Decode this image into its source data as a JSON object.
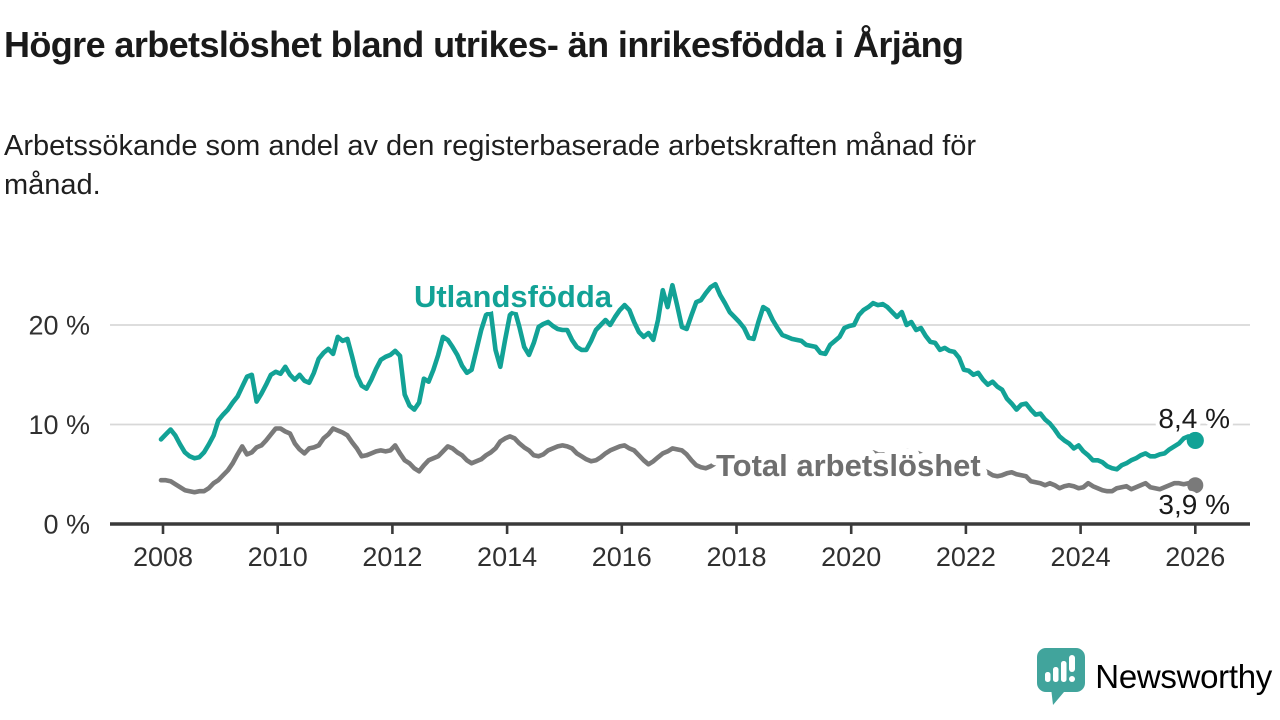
{
  "header": {
    "title": "Högre arbetslöshet bland utrikes- än inrikesfödda i Årjäng",
    "subtitle_lines": [
      "Arbetssökande som andel av den registerbaserade arbetskraften månad för",
      "månad."
    ]
  },
  "chart_data": {
    "type": "line",
    "unit": "%",
    "frequency": "monthly",
    "x_start": "2008-01",
    "x_end": "2026-01",
    "x_ticks": [
      "2008",
      "2010",
      "2012",
      "2014",
      "2016",
      "2018",
      "2020",
      "2022",
      "2024",
      "2026"
    ],
    "y_ticks": [
      {
        "value": 0,
        "label": "0 %"
      },
      {
        "value": 10,
        "label": "10 %"
      },
      {
        "value": 20,
        "label": "20 %"
      }
    ],
    "ylim": [
      0,
      25
    ],
    "grid": "horizontal-only",
    "colors": {
      "utlandsfodda": "#12a296",
      "total": "#7a7a7a",
      "gridline": "#d8d8d8",
      "axis": "#3a3a3a",
      "tick_text": "#303030",
      "gray_label_text": "#6f6f6f"
    },
    "series": [
      {
        "name": "Utlandsfödda",
        "end_label": "8,4 %",
        "end_value": 8.4,
        "values": [
          8.5,
          9.0,
          9.5,
          8.9,
          8.0,
          7.2,
          6.8,
          6.6,
          6.7,
          7.2,
          8.0,
          8.9,
          10.4,
          11.0,
          11.5,
          12.2,
          12.8,
          13.8,
          14.8,
          15.0,
          12.3,
          13.1,
          14.0,
          15.0,
          15.3,
          15.1,
          15.8,
          15.0,
          14.5,
          15.0,
          14.4,
          14.2,
          15.2,
          16.6,
          17.2,
          17.6,
          17.1,
          18.8,
          18.4,
          18.6,
          16.8,
          14.9,
          13.9,
          13.6,
          14.5,
          15.6,
          16.5,
          16.8,
          17.0,
          17.4,
          16.9,
          13.0,
          11.9,
          11.5,
          12.2,
          14.6,
          14.3,
          15.5,
          17.0,
          18.8,
          18.5,
          17.8,
          17.0,
          15.9,
          15.2,
          15.5,
          17.5,
          19.5,
          21.0,
          21.3,
          17.5,
          15.8,
          18.5,
          21.0,
          21.5,
          19.8,
          17.8,
          17.0,
          18.2,
          19.8,
          20.1,
          20.3,
          19.9,
          19.6,
          19.5,
          19.5,
          18.5,
          17.8,
          17.5,
          17.5,
          18.4,
          19.5,
          20.0,
          20.5,
          20.0,
          20.8,
          21.5,
          22.0,
          21.5,
          20.3,
          19.3,
          18.8,
          19.2,
          18.5,
          20.5,
          23.5,
          21.8,
          24.0,
          22.0,
          19.8,
          19.6,
          21.0,
          22.3,
          22.5,
          23.2,
          23.8,
          24.1,
          23.0,
          22.2,
          21.3,
          20.8,
          20.3,
          19.7,
          18.7,
          18.6,
          20.3,
          21.8,
          21.5,
          20.5,
          19.7,
          19.0,
          18.8,
          18.6,
          18.5,
          18.4,
          18.0,
          17.9,
          17.8,
          17.2,
          17.1,
          18.0,
          18.4,
          18.8,
          19.7,
          19.9,
          20.0,
          21.0,
          21.5,
          21.8,
          22.2,
          22.0,
          22.1,
          21.8,
          21.3,
          20.8,
          21.3,
          20.0,
          20.3,
          19.5,
          19.7,
          18.9,
          18.3,
          18.2,
          17.5,
          17.7,
          17.4,
          17.3,
          16.7,
          15.5,
          15.4,
          15.0,
          15.2,
          14.5,
          14.0,
          14.3,
          13.8,
          13.5,
          12.6,
          12.1,
          11.5,
          12.0,
          12.1,
          11.5,
          11.0,
          11.1,
          10.5,
          10.1,
          9.5,
          8.8,
          8.4,
          8.1,
          7.6,
          7.9,
          7.3,
          6.9,
          6.4,
          6.4,
          6.2,
          5.8,
          5.6,
          5.5,
          5.9,
          6.1,
          6.4,
          6.6,
          6.9,
          7.1,
          6.8,
          6.8,
          7.0,
          7.1,
          7.5,
          7.8,
          8.1,
          8.6,
          8.8,
          8.4
        ]
      },
      {
        "name": "Total arbetslöshet",
        "end_label": "3,9 %",
        "end_value": 3.9,
        "values": [
          4.4,
          4.4,
          4.3,
          4.0,
          3.7,
          3.4,
          3.3,
          3.2,
          3.3,
          3.3,
          3.6,
          4.1,
          4.4,
          4.9,
          5.4,
          6.1,
          7.0,
          7.8,
          7.0,
          7.2,
          7.7,
          7.9,
          8.4,
          9.0,
          9.6,
          9.6,
          9.3,
          9.1,
          8.1,
          7.5,
          7.1,
          7.6,
          7.7,
          7.9,
          8.6,
          9.0,
          9.6,
          9.4,
          9.2,
          8.9,
          8.2,
          7.6,
          6.8,
          6.9,
          7.1,
          7.3,
          7.4,
          7.3,
          7.4,
          7.9,
          7.1,
          6.4,
          6.1,
          5.6,
          5.3,
          5.9,
          6.4,
          6.6,
          6.8,
          7.3,
          7.8,
          7.6,
          7.2,
          6.9,
          6.4,
          6.1,
          6.3,
          6.5,
          6.9,
          7.2,
          7.6,
          8.3,
          8.6,
          8.8,
          8.6,
          8.1,
          7.7,
          7.4,
          6.9,
          6.8,
          7.0,
          7.4,
          7.6,
          7.8,
          7.9,
          7.8,
          7.6,
          7.1,
          6.8,
          6.5,
          6.3,
          6.4,
          6.7,
          7.1,
          7.4,
          7.6,
          7.8,
          7.9,
          7.6,
          7.4,
          6.9,
          6.4,
          6.0,
          6.3,
          6.7,
          7.1,
          7.3,
          7.6,
          7.5,
          7.4,
          7.0,
          6.4,
          5.9,
          5.7,
          5.6,
          5.8,
          6.1,
          6.5,
          6.9,
          7.3,
          7.2,
          6.9,
          6.5,
          6.1,
          5.8,
          5.5,
          5.3,
          5.4,
          5.6,
          5.8,
          6.0,
          6.3,
          6.3,
          6.2,
          6.0,
          5.7,
          5.4,
          5.2,
          5.0,
          5.1,
          5.2,
          5.4,
          5.6,
          5.8,
          5.9,
          6.0,
          6.3,
          6.7,
          7.0,
          7.2,
          7.0,
          7.0,
          6.9,
          6.8,
          6.9,
          7.2,
          7.4,
          7.4,
          7.2,
          7.0,
          6.7,
          6.4,
          6.2,
          6.1,
          6.1,
          6.2,
          6.3,
          6.4,
          6.3,
          6.1,
          5.8,
          5.6,
          5.4,
          5.2,
          4.9,
          4.8,
          4.9,
          5.1,
          5.2,
          5.0,
          4.9,
          4.8,
          4.3,
          4.2,
          4.1,
          3.9,
          4.1,
          3.9,
          3.6,
          3.8,
          3.9,
          3.8,
          3.6,
          3.7,
          4.1,
          3.8,
          3.6,
          3.4,
          3.3,
          3.3,
          3.6,
          3.7,
          3.8,
          3.5,
          3.7,
          3.9,
          4.1,
          3.7,
          3.6,
          3.5,
          3.7,
          3.9,
          4.1,
          4.1,
          4.0,
          4.1,
          3.9
        ]
      }
    ]
  },
  "footer": {
    "brand": "Newsworthy",
    "brand_color": "#4aa29b",
    "logo_color": "#41a49c"
  }
}
